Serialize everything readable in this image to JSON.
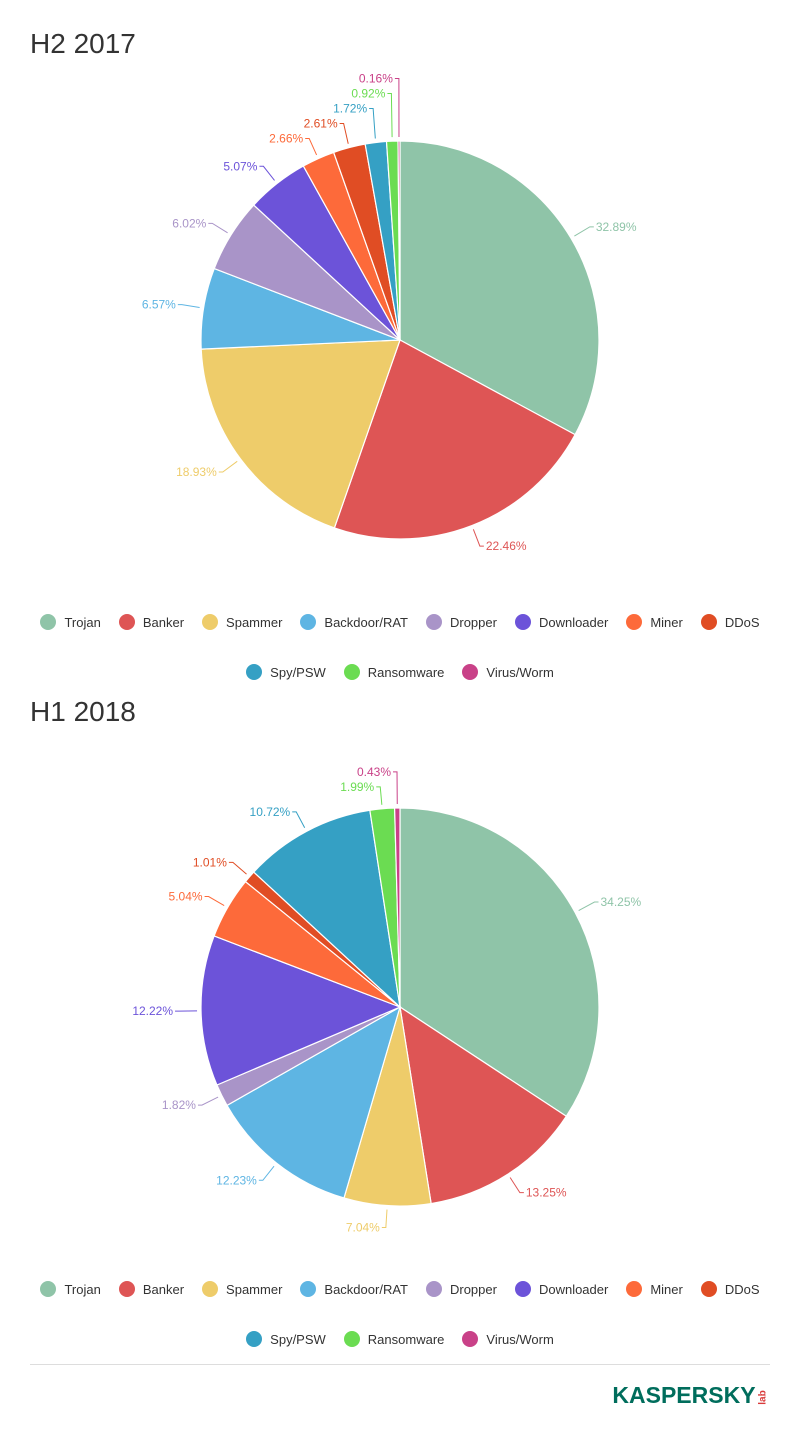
{
  "chart_data": [
    {
      "type": "pie",
      "title": "H2 2017",
      "categories": [
        "Trojan",
        "Banker",
        "Spammer",
        "Backdoor/RAT",
        "Dropper",
        "Downloader",
        "Miner",
        "DDoS",
        "Spy/PSW",
        "Ransomware",
        "Virus/Worm"
      ],
      "values": [
        32.89,
        22.46,
        18.93,
        6.57,
        6.02,
        5.07,
        2.66,
        2.61,
        1.72,
        0.92,
        0.16
      ],
      "labels": [
        "32.89%",
        "22.46%",
        "18.93%",
        "6.57%",
        "6.02%",
        "5.07%",
        "2.66%",
        "2.61%",
        "1.72%",
        "0.92%",
        "0.16%"
      ],
      "legend": "bottom"
    },
    {
      "type": "pie",
      "title": "H1 2018",
      "categories": [
        "Trojan",
        "Banker",
        "Spammer",
        "Backdoor/RAT",
        "Dropper",
        "Downloader",
        "Miner",
        "DDoS",
        "Spy/PSW",
        "Ransomware",
        "Virus/Worm"
      ],
      "values": [
        34.25,
        13.25,
        7.04,
        12.23,
        1.82,
        12.22,
        5.04,
        1.01,
        10.72,
        1.99,
        0.43
      ],
      "labels": [
        "34.25%",
        "13.25%",
        "7.04%",
        "12.23%",
        "1.82%",
        "12.22%",
        "5.04%",
        "1.01%",
        "10.72%",
        "1.99%",
        "0.43%"
      ],
      "legend": "bottom"
    }
  ],
  "colors": [
    "#8fc4a8",
    "#de5555",
    "#eecc6a",
    "#5eb5e3",
    "#a994c8",
    "#6c53d9",
    "#fd6a3a",
    "#e04d24",
    "#35a0c4",
    "#6bdc52",
    "#c94188"
  ],
  "brand": {
    "logo_text": "KASPERSKY",
    "logo_sub": "lab"
  }
}
